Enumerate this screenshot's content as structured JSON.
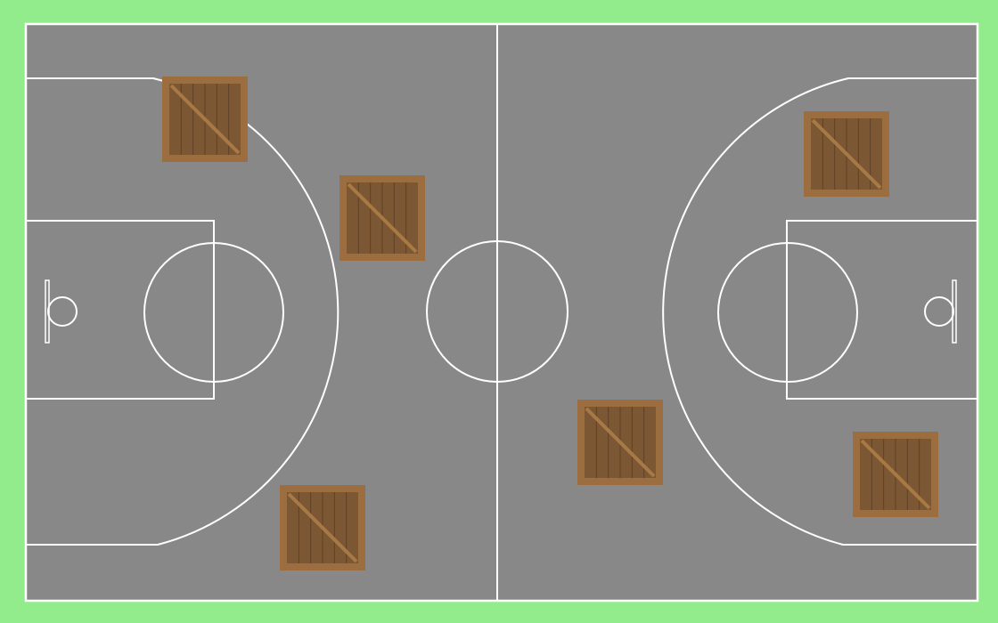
{
  "game": {
    "title": "",
    "crate_count": 6
  },
  "colors": {
    "grass": "#93ec8c",
    "court_floor": "#888888",
    "court_lines": "#ffffff",
    "crate_frame": "#9c6d3e",
    "crate_inner": "#7b5734",
    "crate_planks": "#5f4126",
    "crate_brace": "#a87845"
  },
  "crates": [
    {
      "id": "crate-1",
      "icon": "wooden-crate-icon"
    },
    {
      "id": "crate-2",
      "icon": "wooden-crate-icon"
    },
    {
      "id": "crate-3",
      "icon": "wooden-crate-icon"
    },
    {
      "id": "crate-4",
      "icon": "wooden-crate-icon"
    },
    {
      "id": "crate-5",
      "icon": "wooden-crate-icon"
    },
    {
      "id": "crate-6",
      "icon": "wooden-crate-icon"
    }
  ],
  "court": {
    "hoops": [
      {
        "side": "left",
        "icon": "basketball-hoop-icon"
      },
      {
        "side": "right",
        "icon": "basketball-hoop-icon"
      }
    ]
  }
}
